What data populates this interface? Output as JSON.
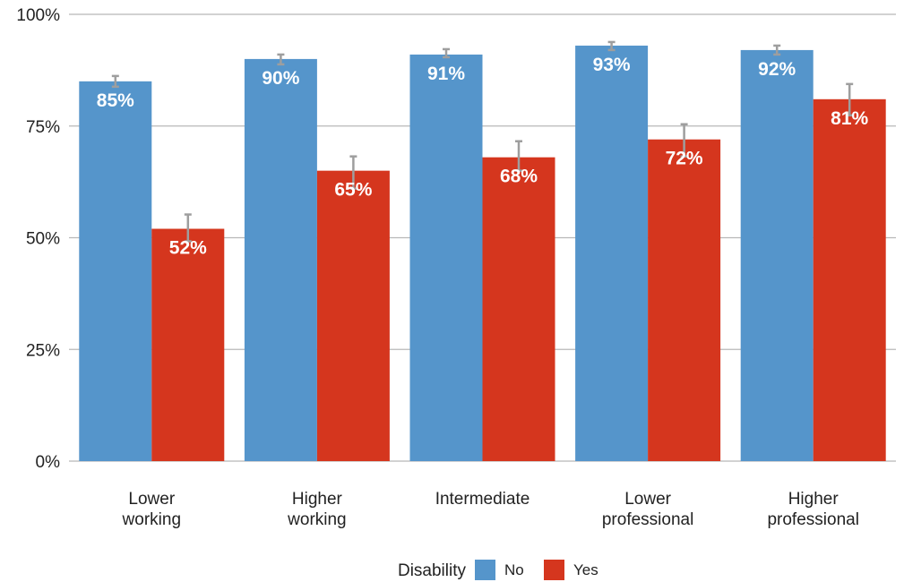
{
  "chart_data": {
    "type": "bar",
    "categories": [
      [
        "Lower",
        "working"
      ],
      [
        "Higher",
        "working"
      ],
      [
        "Intermediate"
      ],
      [
        "Lower",
        "professional"
      ],
      [
        "Higher",
        "professional"
      ]
    ],
    "series": [
      {
        "name": "No",
        "color": "#5595cb",
        "values": [
          85,
          90,
          91,
          93,
          92
        ],
        "labels": [
          "85%",
          "90%",
          "91%",
          "93%",
          "92%"
        ],
        "error_low": [
          83.8,
          88.8,
          90.4,
          92.0,
          91.0
        ],
        "error_high": [
          86.2,
          91.0,
          92.2,
          93.8,
          93.0
        ]
      },
      {
        "name": "Yes",
        "color": "#d5361e",
        "values": [
          52,
          65,
          68,
          72,
          81
        ],
        "labels": [
          "52%",
          "65%",
          "68%",
          "72%",
          "81%"
        ],
        "error_low": [
          49.2,
          61.0,
          65.0,
          68.2,
          77.4
        ],
        "error_high": [
          55.2,
          68.2,
          71.6,
          75.4,
          84.4
        ]
      }
    ],
    "ylim": [
      0,
      100
    ],
    "yticks": [
      0,
      25,
      50,
      75,
      100
    ],
    "ytick_labels": [
      "0%",
      "25%",
      "50%",
      "75%",
      "100%"
    ],
    "legend": {
      "title": "Disability",
      "position": "bottom"
    },
    "grid": true,
    "error_bar_color": "#9e9e9e",
    "grid_color": "#b8b8b8"
  }
}
